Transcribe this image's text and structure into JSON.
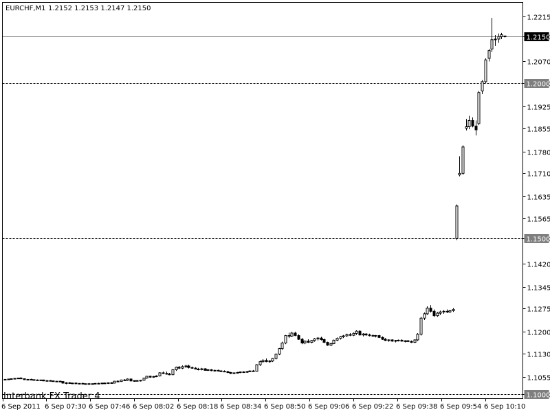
{
  "header": {
    "symbol": "EURCHF,M1",
    "ohlc": "1.2152 1.2153 1.2147 1.2150"
  },
  "watermark": "Interbank FX Trader 4",
  "colors": {
    "background": "#ffffff",
    "candle_outline": "#000000",
    "bull_fill": "#ffffff",
    "bear_fill": "#000000",
    "level_label_bg": "#7f7f7f",
    "current_label_bg": "#000000",
    "label_text": "#ffffff",
    "hline": "#808080"
  },
  "chart_data": {
    "type": "candlestick",
    "title": "EURCHF,M1",
    "ylim": [
      1.0985,
      1.226
    ],
    "y_ticks": [
      "1.2215",
      "1.2150",
      "1.2070",
      "1.2000",
      "1.1925",
      "1.1855",
      "1.1780",
      "1.1710",
      "1.1635",
      "1.1565",
      "1.1500",
      "1.1420",
      "1.1345",
      "1.1275",
      "1.1200",
      "1.1130",
      "1.1055",
      "1.1000"
    ],
    "x_labels": [
      "6 Sep 2011",
      "6 Sep 07:30",
      "6 Sep 07:46",
      "6 Sep 08:02",
      "6 Sep 08:18",
      "6 Sep 08:34",
      "6 Sep 08:50",
      "6 Sep 09:06",
      "6 Sep 09:22",
      "6 Sep 09:38",
      "6 Sep 09:54",
      "6 Sep 10:10"
    ],
    "levels": [
      {
        "price": 1.2,
        "label": "1.2000",
        "style": "dashed"
      },
      {
        "price": 1.15,
        "label": "1.1500",
        "style": "dashed"
      },
      {
        "price": 1.1,
        "label": "1.1000",
        "style": "dashed"
      }
    ],
    "current_price": {
      "price": 1.215,
      "label": "1.2150"
    },
    "candles": [
      [
        1.1046,
        1.1048,
        1.1044,
        1.1047
      ],
      [
        1.1047,
        1.1049,
        1.1045,
        1.1048
      ],
      [
        1.1048,
        1.105,
        1.1046,
        1.1049
      ],
      [
        1.1049,
        1.1051,
        1.1047,
        1.105
      ],
      [
        1.105,
        1.1052,
        1.1048,
        1.1051
      ],
      [
        1.1051,
        1.1054,
        1.1048,
        1.1049
      ],
      [
        1.1049,
        1.105,
        1.1045,
        1.1046
      ],
      [
        1.1046,
        1.1048,
        1.1044,
        1.1047
      ],
      [
        1.1047,
        1.1049,
        1.1045,
        1.1046
      ],
      [
        1.1046,
        1.1047,
        1.1043,
        1.1045
      ],
      [
        1.1045,
        1.1047,
        1.1043,
        1.1044
      ],
      [
        1.1044,
        1.1046,
        1.1042,
        1.1045
      ],
      [
        1.1045,
        1.1046,
        1.1041,
        1.1042
      ],
      [
        1.1042,
        1.1044,
        1.104,
        1.1043
      ],
      [
        1.1043,
        1.1045,
        1.1041,
        1.1042
      ],
      [
        1.1042,
        1.1043,
        1.1039,
        1.104
      ],
      [
        1.104,
        1.1042,
        1.1038,
        1.1041
      ],
      [
        1.1041,
        1.1043,
        1.1039,
        1.104
      ],
      [
        1.104,
        1.1041,
        1.1033,
        1.1035
      ],
      [
        1.1035,
        1.1038,
        1.1031,
        1.1036
      ],
      [
        1.1036,
        1.1038,
        1.1033,
        1.1034
      ],
      [
        1.1034,
        1.1036,
        1.1032,
        1.1035
      ],
      [
        1.1035,
        1.1037,
        1.1032,
        1.1033
      ],
      [
        1.1033,
        1.1035,
        1.1031,
        1.1034
      ],
      [
        1.1034,
        1.1036,
        1.1031,
        1.1032
      ],
      [
        1.1032,
        1.1034,
        1.103,
        1.1033
      ],
      [
        1.1033,
        1.1035,
        1.1031,
        1.1032
      ],
      [
        1.1032,
        1.1034,
        1.103,
        1.1033
      ],
      [
        1.1033,
        1.1035,
        1.1031,
        1.1034
      ],
      [
        1.1034,
        1.1036,
        1.1032,
        1.1033
      ],
      [
        1.1033,
        1.1036,
        1.1031,
        1.1035
      ],
      [
        1.1035,
        1.1037,
        1.1033,
        1.1034
      ],
      [
        1.1034,
        1.1037,
        1.1032,
        1.1036
      ],
      [
        1.1036,
        1.1038,
        1.1034,
        1.1035
      ],
      [
        1.1035,
        1.1042,
        1.1034,
        1.1041
      ],
      [
        1.1041,
        1.1044,
        1.1038,
        1.104
      ],
      [
        1.104,
        1.1046,
        1.1039,
        1.1045
      ],
      [
        1.1045,
        1.1048,
        1.1043,
        1.1044
      ],
      [
        1.1044,
        1.105,
        1.1042,
        1.1048
      ],
      [
        1.1048,
        1.105,
        1.104,
        1.1042
      ],
      [
        1.1042,
        1.1044,
        1.1039,
        1.1043
      ],
      [
        1.1043,
        1.1045,
        1.1041,
        1.1042
      ],
      [
        1.1042,
        1.1045,
        1.104,
        1.1044
      ],
      [
        1.1044,
        1.1052,
        1.1043,
        1.1051
      ],
      [
        1.1051,
        1.1058,
        1.1049,
        1.1057
      ],
      [
        1.1057,
        1.1059,
        1.1052,
        1.1054
      ],
      [
        1.1054,
        1.1058,
        1.1052,
        1.1056
      ],
      [
        1.1056,
        1.106,
        1.1054,
        1.1058
      ],
      [
        1.1058,
        1.107,
        1.1056,
        1.1068
      ],
      [
        1.1068,
        1.1072,
        1.1064,
        1.1066
      ],
      [
        1.1066,
        1.1072,
        1.1062,
        1.1064
      ],
      [
        1.1064,
        1.1068,
        1.106,
        1.1062
      ],
      [
        1.1062,
        1.108,
        1.106,
        1.1078
      ],
      [
        1.1078,
        1.1088,
        1.1074,
        1.1086
      ],
      [
        1.1086,
        1.109,
        1.108,
        1.1083
      ],
      [
        1.1083,
        1.1092,
        1.108,
        1.1088
      ],
      [
        1.1088,
        1.1094,
        1.1084,
        1.109
      ],
      [
        1.109,
        1.1094,
        1.1082,
        1.1085
      ],
      [
        1.1085,
        1.1088,
        1.1081,
        1.1083
      ],
      [
        1.1083,
        1.1086,
        1.1079,
        1.108
      ],
      [
        1.108,
        1.1084,
        1.1076,
        1.1078
      ],
      [
        1.1078,
        1.1084,
        1.1076,
        1.1081
      ],
      [
        1.1081,
        1.1083,
        1.1075,
        1.1076
      ],
      [
        1.1076,
        1.108,
        1.1074,
        1.1078
      ],
      [
        1.1078,
        1.108,
        1.1073,
        1.1075
      ],
      [
        1.1075,
        1.1078,
        1.1072,
        1.1076
      ],
      [
        1.1076,
        1.1078,
        1.1072,
        1.1074
      ],
      [
        1.1074,
        1.1077,
        1.1071,
        1.1073
      ],
      [
        1.1073,
        1.1076,
        1.107,
        1.1072
      ],
      [
        1.1072,
        1.1074,
        1.1067,
        1.1069
      ],
      [
        1.1069,
        1.1071,
        1.1064,
        1.1066
      ],
      [
        1.1066,
        1.1069,
        1.1064,
        1.1068
      ],
      [
        1.1068,
        1.1071,
        1.1066,
        1.1069
      ],
      [
        1.1069,
        1.1072,
        1.1067,
        1.1071
      ],
      [
        1.1071,
        1.1073,
        1.1068,
        1.107
      ],
      [
        1.107,
        1.1074,
        1.1068,
        1.1072
      ],
      [
        1.1072,
        1.1076,
        1.107,
        1.1074
      ],
      [
        1.1074,
        1.1077,
        1.1072,
        1.1073
      ],
      [
        1.1073,
        1.1096,
        1.1072,
        1.1094
      ],
      [
        1.1094,
        1.1108,
        1.109,
        1.1104
      ],
      [
        1.1104,
        1.1112,
        1.11,
        1.1108
      ],
      [
        1.1108,
        1.1114,
        1.1102,
        1.1104
      ],
      [
        1.1104,
        1.1109,
        1.11,
        1.1106
      ],
      [
        1.1106,
        1.1116,
        1.1103,
        1.1114
      ],
      [
        1.1114,
        1.113,
        1.1111,
        1.1128
      ],
      [
        1.1128,
        1.1148,
        1.1125,
        1.1146
      ],
      [
        1.1146,
        1.1168,
        1.1142,
        1.1164
      ],
      [
        1.1164,
        1.119,
        1.116,
        1.1188
      ],
      [
        1.1188,
        1.1197,
        1.118,
        1.1186
      ],
      [
        1.1186,
        1.12,
        1.1183,
        1.1196
      ],
      [
        1.1196,
        1.12,
        1.1186,
        1.1188
      ],
      [
        1.1188,
        1.1192,
        1.1174,
        1.1176
      ],
      [
        1.1176,
        1.118,
        1.116,
        1.1164
      ],
      [
        1.1164,
        1.1172,
        1.116,
        1.117
      ],
      [
        1.117,
        1.1176,
        1.1164,
        1.1166
      ],
      [
        1.1166,
        1.1174,
        1.1163,
        1.1172
      ],
      [
        1.1172,
        1.118,
        1.1168,
        1.1177
      ],
      [
        1.1177,
        1.1183,
        1.1172,
        1.118
      ],
      [
        1.118,
        1.1184,
        1.1172,
        1.1175
      ],
      [
        1.1175,
        1.1178,
        1.1164,
        1.1166
      ],
      [
        1.1166,
        1.1168,
        1.1155,
        1.1157
      ],
      [
        1.1157,
        1.1165,
        1.1154,
        1.1162
      ],
      [
        1.1162,
        1.1175,
        1.116,
        1.1173
      ],
      [
        1.1173,
        1.1182,
        1.117,
        1.1179
      ],
      [
        1.1179,
        1.1186,
        1.1175,
        1.1184
      ],
      [
        1.1184,
        1.119,
        1.118,
        1.1187
      ],
      [
        1.1187,
        1.1194,
        1.1183,
        1.1191
      ],
      [
        1.1191,
        1.1196,
        1.1186,
        1.1189
      ],
      [
        1.1189,
        1.1198,
        1.1186,
        1.1195
      ],
      [
        1.1195,
        1.1205,
        1.119,
        1.1202
      ],
      [
        1.1202,
        1.1205,
        1.1188,
        1.119
      ],
      [
        1.119,
        1.1196,
        1.1185,
        1.1193
      ],
      [
        1.1193,
        1.1196,
        1.1187,
        1.119
      ],
      [
        1.119,
        1.1194,
        1.1185,
        1.1188
      ],
      [
        1.1188,
        1.1192,
        1.1184,
        1.1186
      ],
      [
        1.1186,
        1.119,
        1.1182,
        1.1188
      ],
      [
        1.1188,
        1.119,
        1.118,
        1.1182
      ],
      [
        1.1182,
        1.1185,
        1.1174,
        1.1176
      ],
      [
        1.1176,
        1.118,
        1.117,
        1.1172
      ],
      [
        1.1172,
        1.1176,
        1.1168,
        1.1174
      ],
      [
        1.1174,
        1.1176,
        1.1168,
        1.117
      ],
      [
        1.117,
        1.1174,
        1.1166,
        1.1172
      ],
      [
        1.1172,
        1.1175,
        1.1169,
        1.1173
      ],
      [
        1.1173,
        1.1176,
        1.1168,
        1.117
      ],
      [
        1.117,
        1.1173,
        1.1166,
        1.1171
      ],
      [
        1.1171,
        1.1174,
        1.1167,
        1.1169
      ],
      [
        1.1169,
        1.1172,
        1.1164,
        1.1166
      ],
      [
        1.1166,
        1.1176,
        1.1164,
        1.1174
      ],
      [
        1.1174,
        1.1196,
        1.117,
        1.1192
      ],
      [
        1.1192,
        1.1248,
        1.1188,
        1.1244
      ],
      [
        1.1244,
        1.1262,
        1.1238,
        1.1258
      ],
      [
        1.1258,
        1.1282,
        1.1254,
        1.1276
      ],
      [
        1.1276,
        1.1286,
        1.1262,
        1.1266
      ],
      [
        1.1266,
        1.1272,
        1.1248,
        1.1252
      ],
      [
        1.1252,
        1.1264,
        1.1248,
        1.126
      ],
      [
        1.126,
        1.1268,
        1.1254,
        1.1264
      ],
      [
        1.1264,
        1.127,
        1.1258,
        1.1266
      ],
      [
        1.1266,
        1.1272,
        1.126,
        1.1264
      ],
      [
        1.1264,
        1.127,
        1.126,
        1.1268
      ],
      [
        1.1268,
        1.1276,
        1.1264,
        1.1272
      ],
      [
        1.15,
        1.161,
        1.1495,
        1.1605
      ],
      [
        1.1705,
        1.1765,
        1.17,
        1.171
      ],
      [
        1.171,
        1.18,
        1.1705,
        1.1795
      ],
      [
        1.1855,
        1.1885,
        1.1848,
        1.186
      ],
      [
        1.186,
        1.1895,
        1.1852,
        1.188
      ],
      [
        1.188,
        1.189,
        1.1858,
        1.1862
      ],
      [
        1.1862,
        1.188,
        1.1832,
        1.185
      ],
      [
        1.187,
        1.1975,
        1.1865,
        1.197
      ],
      [
        1.1975,
        1.201,
        1.1965,
        1.2005
      ],
      [
        1.2005,
        1.208,
        1.2,
        1.2075
      ],
      [
        1.208,
        1.211,
        1.207,
        1.2105
      ],
      [
        1.211,
        1.221,
        1.21,
        1.214
      ],
      [
        1.214,
        1.2155,
        1.212,
        1.2142
      ],
      [
        1.2142,
        1.216,
        1.213,
        1.215
      ],
      [
        1.215,
        1.2162,
        1.2142,
        1.2156
      ],
      [
        1.2152,
        1.2153,
        1.2147,
        1.215
      ]
    ]
  }
}
